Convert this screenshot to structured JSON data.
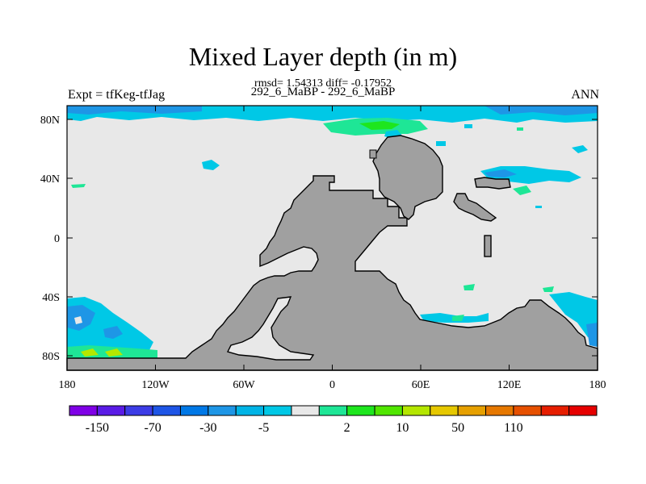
{
  "title": "Mixed Layer depth (in m)",
  "stats": "rmsd= 1.54313 diff= -0.17952",
  "subtitle": "292_6_MaBP - 292_6_MaBP",
  "left_label": "Expt = tfKeg-tfJag",
  "right_label": "ANN",
  "lat_ticks": [
    "80N",
    "40N",
    "0",
    "40S",
    "80S"
  ],
  "lon_ticks": [
    "180",
    "120W",
    "60W",
    "0",
    "60E",
    "120E",
    "180"
  ],
  "colorbar": {
    "colors": [
      "#7f00e6",
      "#5a1be6",
      "#3c3ce6",
      "#1e55e6",
      "#0078e6",
      "#1e96e6",
      "#00b4e6",
      "#00c8e6",
      "#e8e8e8",
      "#1ee696",
      "#1ee61e",
      "#50e600",
      "#b4e600",
      "#e6c800",
      "#e6a000",
      "#e67800",
      "#e65000",
      "#e61e00",
      "#e60000"
    ],
    "labels": [
      "-150",
      "-70",
      "-30",
      "-5",
      "2",
      "10",
      "50",
      "110"
    ]
  },
  "colors": {
    "ocean_default": "#e8e8e8",
    "land": "#a0a0a0",
    "cyan": "#00c8e6",
    "light_blue": "#1e96e6",
    "blue": "#0078e6",
    "green": "#1ee696",
    "bright_green": "#1ee61e",
    "yellow_green": "#b4e600"
  }
}
